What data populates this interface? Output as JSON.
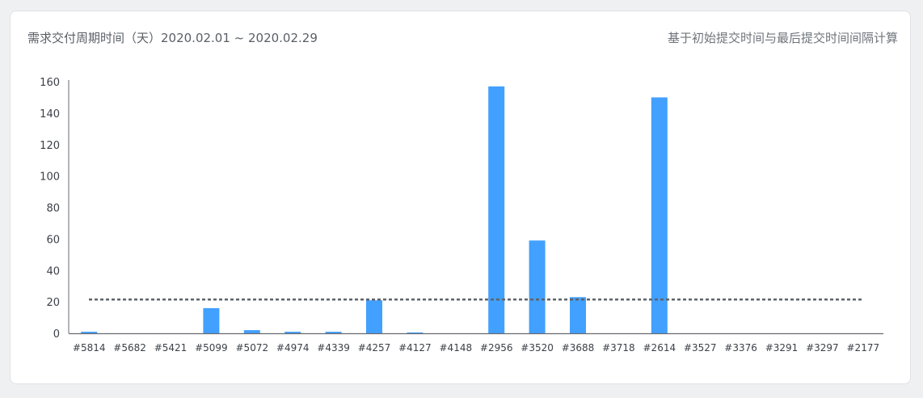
{
  "header": {
    "title": "需求交付周期时间（天）2020.02.01 ~ 2020.02.29",
    "subtitle": "基于初始提交时间与最后提交时间间隔计算"
  },
  "colors": {
    "bar": "#42a0ff",
    "average_line": "#5f636b",
    "axis": "#666a70",
    "card_bg": "#ffffff",
    "page_bg": "#eff0f2"
  },
  "chart_data": {
    "type": "bar",
    "categories": [
      "#5814",
      "#5682",
      "#5421",
      "#5099",
      "#5072",
      "#4974",
      "#4339",
      "#4257",
      "#4127",
      "#4148",
      "#2956",
      "#3520",
      "#3688",
      "#3718",
      "#2614",
      "#3527",
      "#3376",
      "#3291",
      "#3297",
      "#2177"
    ],
    "values": [
      1,
      0,
      0,
      16,
      2,
      1,
      1,
      21,
      0.5,
      0,
      157,
      59,
      23,
      0,
      150,
      0,
      0,
      0,
      0,
      0
    ],
    "average": 21.5,
    "ylim": [
      0,
      160
    ],
    "yticks": [
      0,
      20,
      40,
      60,
      80,
      100,
      120,
      140,
      160
    ],
    "grid": false,
    "legend": "none"
  }
}
